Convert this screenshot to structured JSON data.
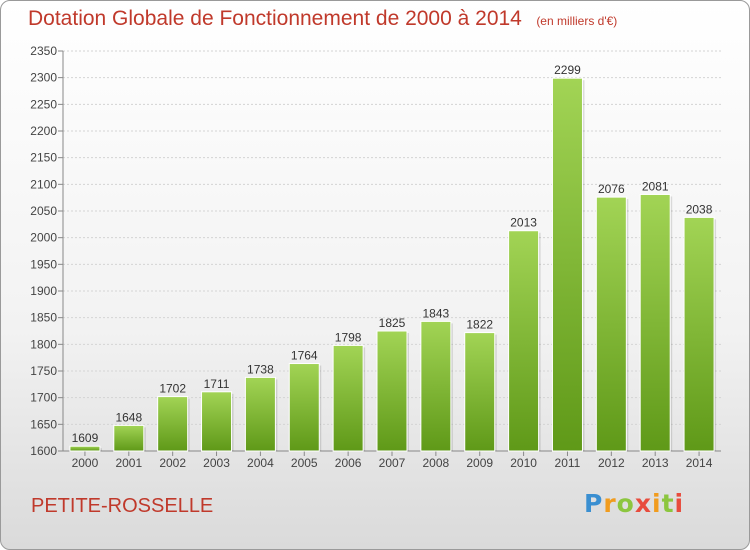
{
  "title": "Dotation Globale de Fonctionnement de 2000 à 2014",
  "subtitle": "(en milliers d'€)",
  "commune": "PETITE-ROSSELLE",
  "logo_text": "Proxiti",
  "colors": {
    "title": "#c0392b",
    "bar_light": "#a2d455",
    "bar_dark": "#5f9918",
    "grid": "#d4d4d4",
    "logo": [
      "#3a8fd1",
      "#f19c1e",
      "#8cc63f",
      "#e84c3d"
    ]
  },
  "chart_data": {
    "type": "bar",
    "title": "Dotation Globale de Fonctionnement de 2000 à 2014",
    "subtitle": "(en milliers d'€)",
    "categories": [
      "2000",
      "2001",
      "2002",
      "2003",
      "2004",
      "2005",
      "2006",
      "2007",
      "2008",
      "2009",
      "2010",
      "2011",
      "2012",
      "2013",
      "2014"
    ],
    "values": [
      1609,
      1648,
      1702,
      1711,
      1738,
      1764,
      1798,
      1825,
      1843,
      1822,
      2013,
      2299,
      2076,
      2081,
      2038
    ],
    "ylim": [
      1600,
      2350
    ],
    "yticks": [
      1600,
      1650,
      1700,
      1750,
      1800,
      1850,
      1900,
      1950,
      2000,
      2050,
      2100,
      2150,
      2200,
      2250,
      2300,
      2350
    ],
    "grid": true,
    "data_labels": true,
    "xlabel": "",
    "ylabel": ""
  }
}
